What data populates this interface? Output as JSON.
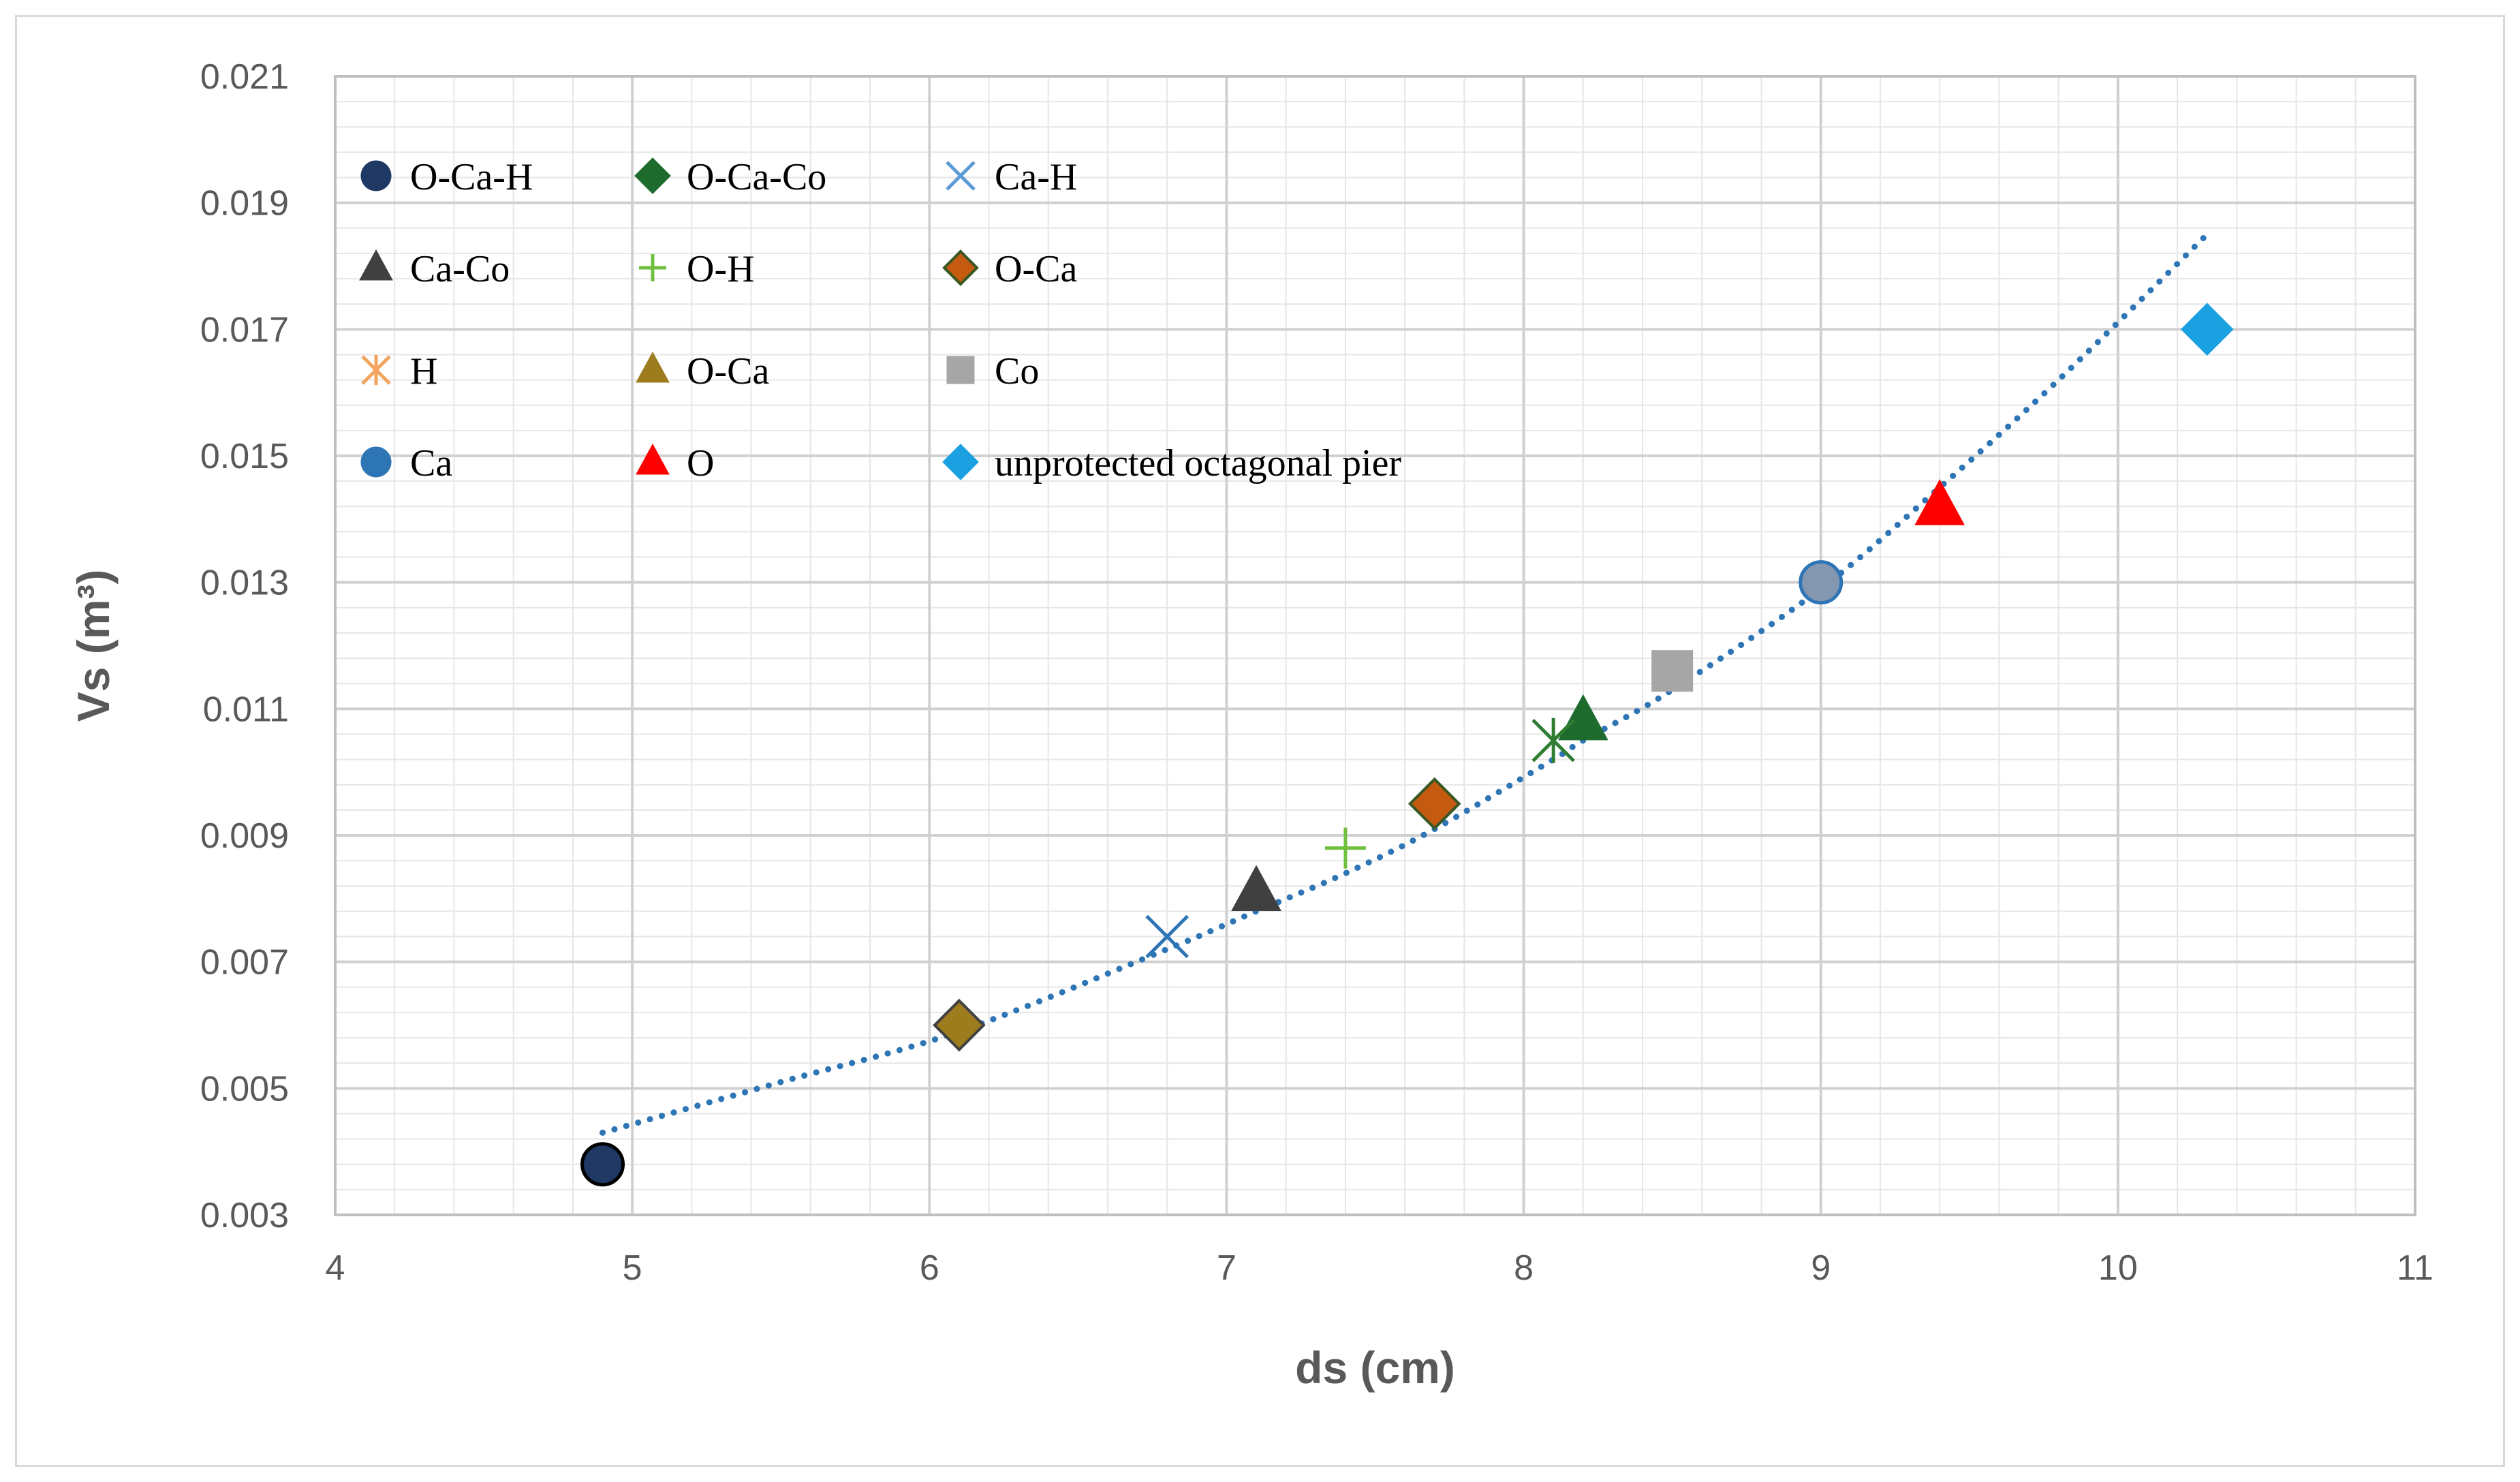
{
  "chart_data": {
    "type": "scatter",
    "title": "",
    "xlabel": "ds (cm)",
    "ylabel": "Vs (m³)",
    "xlim": [
      4,
      11
    ],
    "ylim": [
      0.003,
      0.021
    ],
    "x_ticks": [
      "4",
      "5",
      "6",
      "7",
      "8",
      "9",
      "10",
      "11"
    ],
    "y_ticks": [
      "0.003",
      "0.005",
      "0.007",
      "0.009",
      "0.011",
      "0.013",
      "0.015",
      "0.017",
      "0.019",
      "0.021"
    ],
    "grid": true,
    "legend_position": "top-left",
    "series": [
      {
        "name": "O-Ca-H",
        "marker": "circle",
        "color": "#1f3864",
        "stroke": "#000000",
        "x": 4.9,
        "y": 0.0038
      },
      {
        "name": "O-Ca-Co",
        "marker": "diamond",
        "color": "#1e6b2e",
        "stroke": "#1e6b2e",
        "x": 8.2,
        "y": 0.0108,
        "value_marker": "triangle"
      },
      {
        "name": "Ca-H",
        "marker": "x",
        "color": "#5b9bd5",
        "stroke": "#2e75b6",
        "x": 6.8,
        "y": 0.0074
      },
      {
        "name": "Ca-Co",
        "marker": "triangle",
        "color": "#404040",
        "stroke": "#404040",
        "x": 7.1,
        "y": 0.0081
      },
      {
        "name": "O-H",
        "marker": "plus",
        "color": "#70c040",
        "stroke": "#70c040",
        "x": 7.4,
        "y": 0.0088
      },
      {
        "name": "O-Ca",
        "marker": "diamond",
        "color": "#c55a11",
        "stroke": "#385723",
        "x": 7.7,
        "y": 0.0095
      },
      {
        "name": "H",
        "marker": "asterisk",
        "color": "#f4a460",
        "stroke": "#2e7d32",
        "x": 8.1,
        "y": 0.0105
      },
      {
        "name": "O-Ca",
        "marker": "triangle",
        "color": "#9c7c1c",
        "stroke": "#404040",
        "x": 6.1,
        "y": 0.006,
        "value_marker": "diamond"
      },
      {
        "name": "Co",
        "marker": "square",
        "color": "#a6a6a6",
        "stroke": "#a6a6a6",
        "x": 8.5,
        "y": 0.0116
      },
      {
        "name": "Ca",
        "marker": "circle",
        "color": "#2e75b6",
        "stroke": "#2e75b6",
        "x": 9.0,
        "y": 0.013,
        "value_color": "#8497b0"
      },
      {
        "name": "O",
        "marker": "triangle",
        "color": "#ff0000",
        "stroke": "#ff0000",
        "x": 9.4,
        "y": 0.0142
      },
      {
        "name": "unprotected octagonal pier",
        "marker": "diamond",
        "color": "#1ba1e2",
        "stroke": "#1ba1e2",
        "x": 10.3,
        "y": 0.017
      }
    ],
    "trendline": {
      "type": "polynomial",
      "color": "#2e75b6",
      "x": [
        4.9,
        5.5,
        6.1,
        6.8,
        7.1,
        7.4,
        7.7,
        8.1,
        8.2,
        8.5,
        9.0,
        9.4,
        9.8,
        10.3
      ],
      "y": [
        0.0043,
        0.0051,
        0.0059,
        0.0072,
        0.0078,
        0.0084,
        0.0091,
        0.0102,
        0.0105,
        0.0113,
        0.0129,
        0.0145,
        0.0162,
        0.0185
      ]
    }
  }
}
